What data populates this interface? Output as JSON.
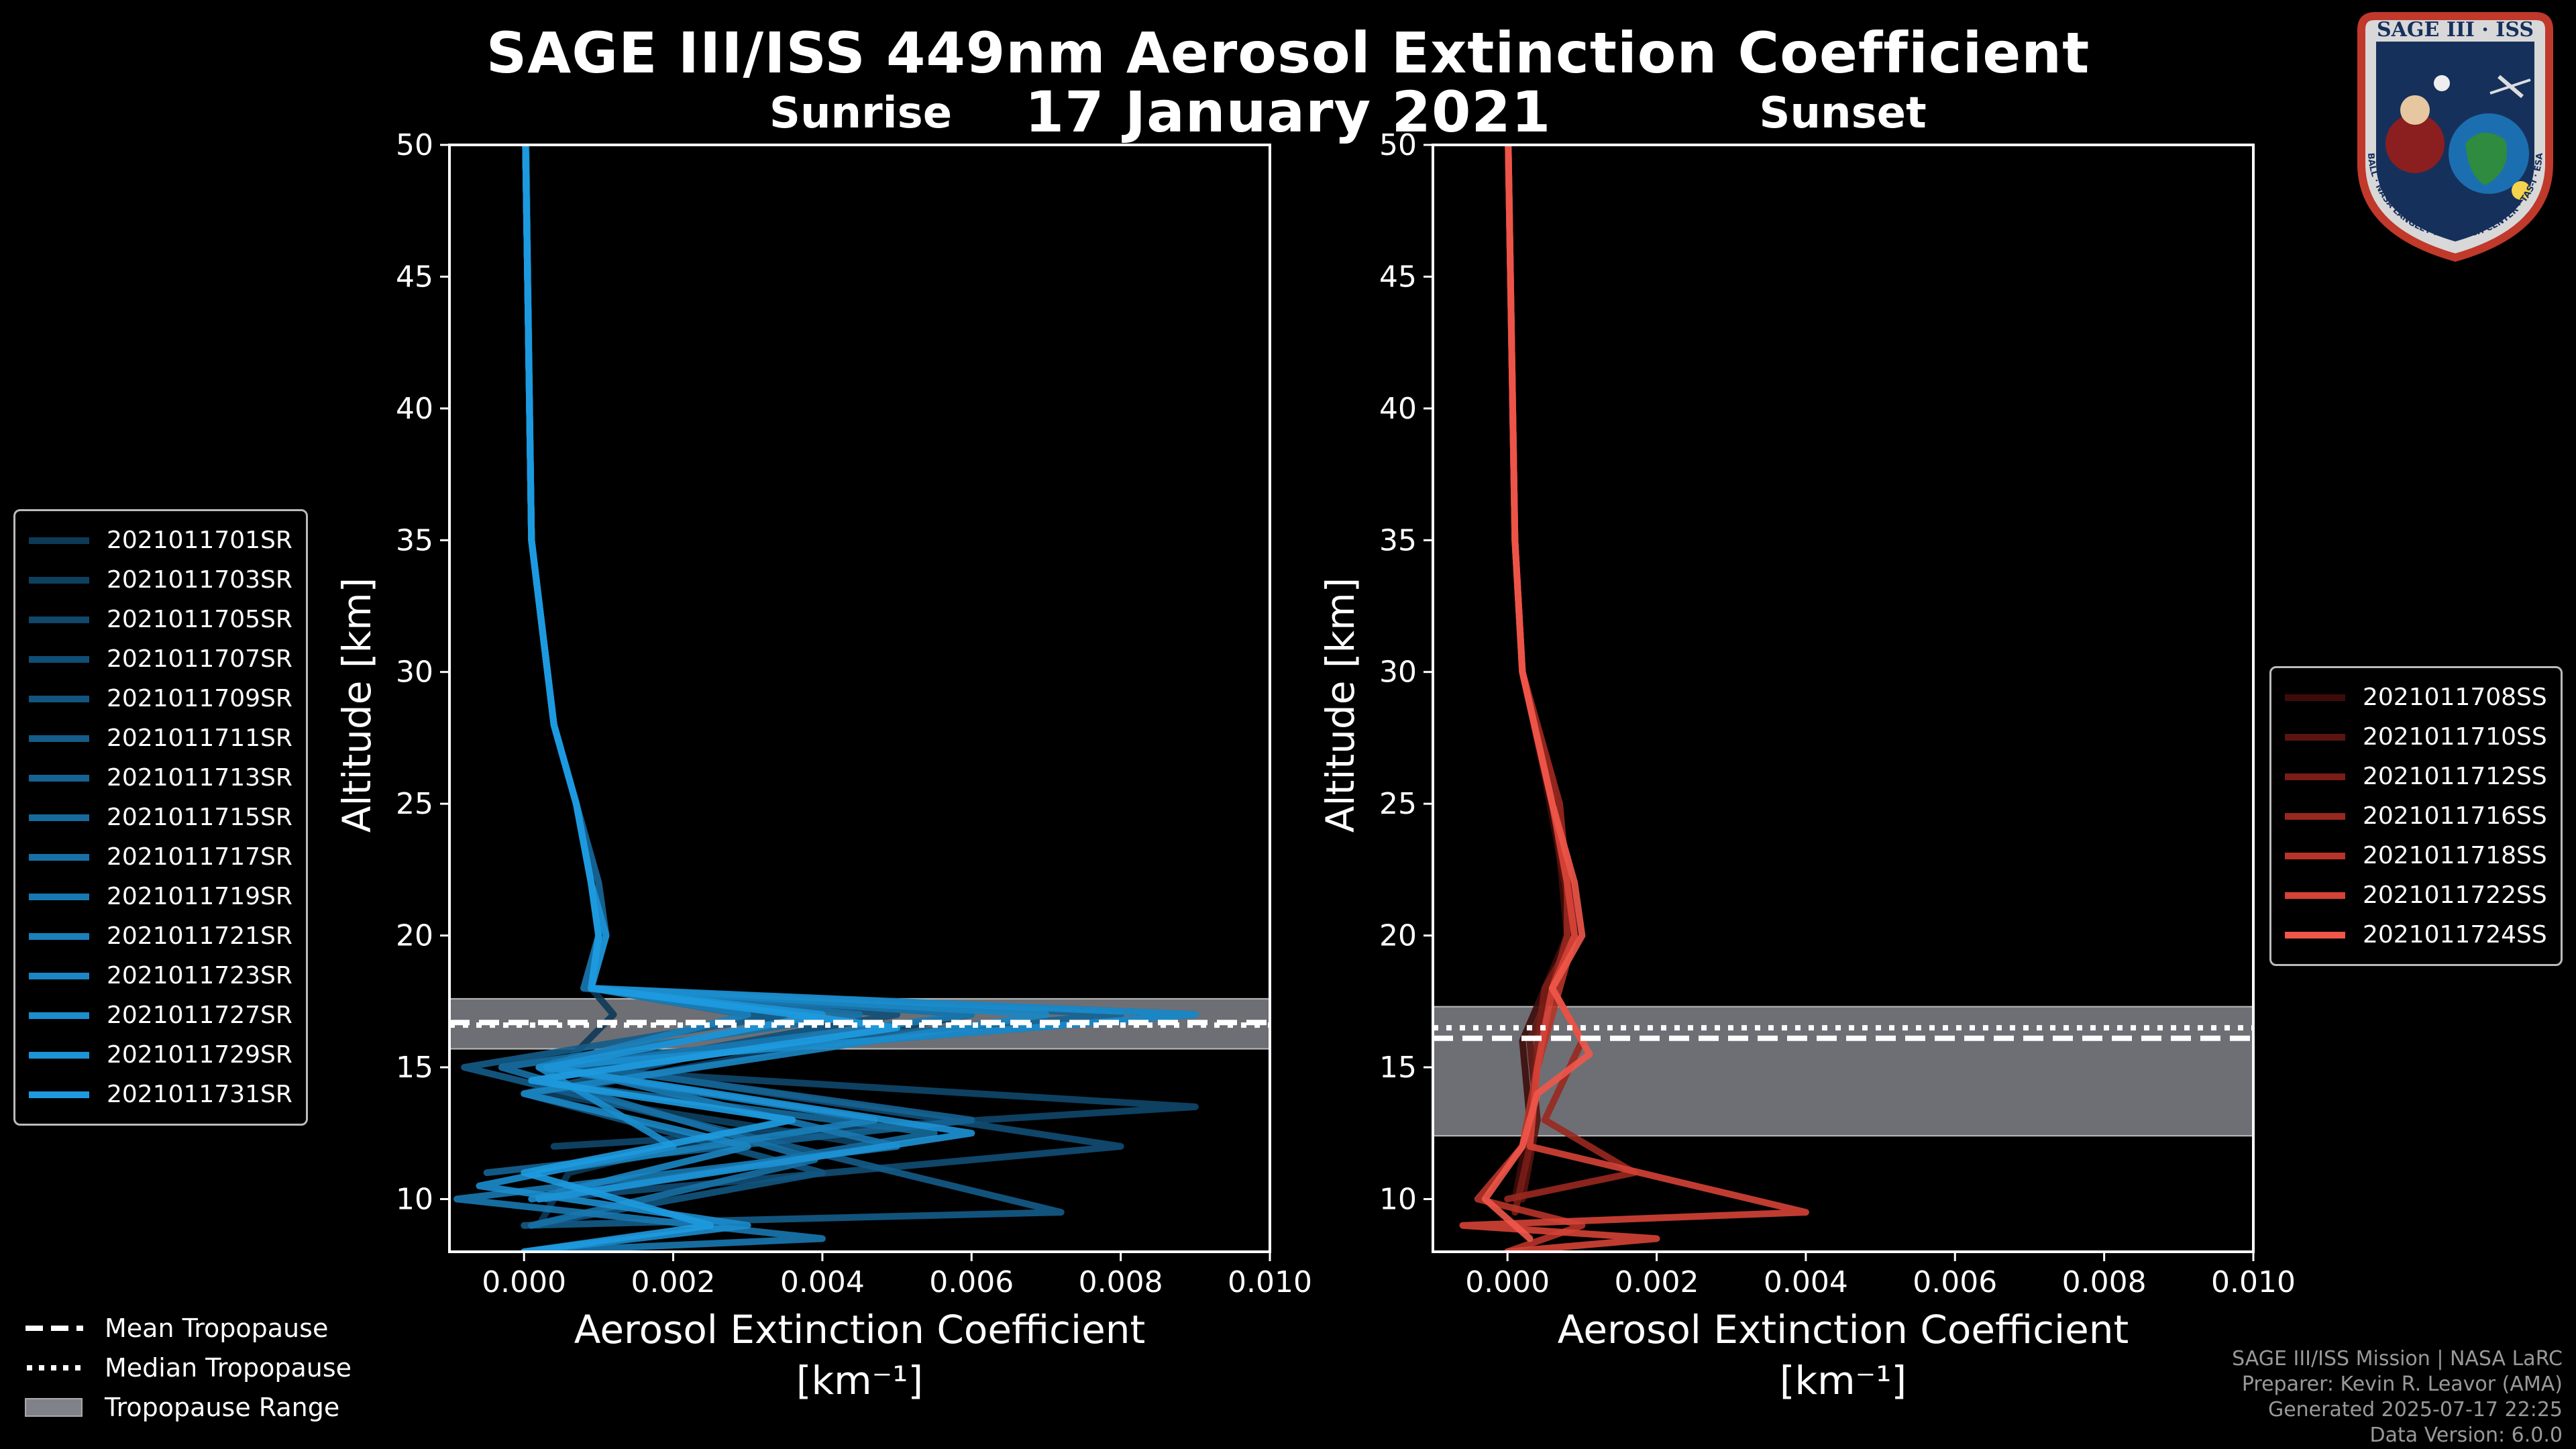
{
  "title_line1": "SAGE III/ISS 449nm Aerosol Extinction Coefficient",
  "title_line2": "17 January 2021",
  "logo": {
    "text": "SAGE III · ISS",
    "ring_text": "BALL · NASA LANGLEY RESEARCH CENTER · TAS-I · ESA"
  },
  "tropopause_legend": [
    {
      "label": "Mean Tropopause",
      "style": "dashed"
    },
    {
      "label": "Median Tropopause",
      "style": "dotted"
    },
    {
      "label": "Tropopause Range",
      "style": "patch"
    }
  ],
  "credits": [
    "SAGE III/ISS Mission | NASA LaRC",
    "Preparer: Kevin R. Leavor (AMA)",
    "Generated 2025-07-17 22:25",
    "Data Version: 6.0.0"
  ],
  "colors": {
    "sunrise": "#1f88c9",
    "sunset": "#e8574a",
    "range": "#80828a"
  },
  "chart_data": [
    {
      "type": "line",
      "title": "Sunrise",
      "xlabel": "Aerosol Extinction Coefficient",
      "xunit": "[km⁻¹]",
      "ylabel": "Altitude [km]",
      "xlim": [
        -0.001,
        0.01
      ],
      "ylim": [
        8,
        50
      ],
      "xticks": [
        0.0,
        0.002,
        0.004,
        0.006,
        0.008,
        0.01
      ],
      "xtick_labels": [
        "0.000",
        "0.002",
        "0.004",
        "0.006",
        "0.008",
        "0.010"
      ],
      "yticks": [
        10,
        15,
        20,
        25,
        30,
        35,
        40,
        45,
        50
      ],
      "tropopause": {
        "mean": 16.7,
        "median": 16.6,
        "range": [
          15.7,
          17.6
        ]
      },
      "legend_loc": "left",
      "series": [
        {
          "name": "2021011701SR",
          "color": "#0d3a57",
          "x": [
            2e-05,
            0.0001,
            0.0004,
            0.0007,
            0.0009,
            0.001,
            0.0009,
            0.0012,
            0.0005,
            0.0035,
            0.0006,
            0.0002
          ],
          "y": [
            50,
            35,
            28,
            25,
            22,
            20,
            18,
            17,
            15,
            13,
            11,
            9
          ]
        },
        {
          "name": "2021011703SR",
          "color": "#0e4060",
          "x": [
            3e-05,
            0.0001,
            0.0004,
            0.0007,
            0.0009,
            0.001,
            0.0009,
            0.006,
            0.0003,
            0.0048,
            0.0001
          ],
          "y": [
            50,
            35,
            28,
            25,
            22,
            20,
            18,
            17,
            14,
            12,
            10
          ]
        },
        {
          "name": "2021011705SR",
          "color": "#10476b",
          "x": [
            2e-05,
            0.0001,
            0.0004,
            0.0007,
            0.001,
            0.0011,
            0.0008,
            0.009,
            0.0002,
            0.009,
            0.0004
          ],
          "y": [
            50,
            35,
            28,
            25,
            22,
            20,
            18,
            17,
            15,
            13.5,
            12
          ]
        },
        {
          "name": "2021011707SR",
          "color": "#114e75",
          "x": [
            2e-05,
            0.0001,
            0.0004,
            0.0007,
            0.0009,
            0.001,
            0.0008,
            0.005,
            0.001,
            0.008,
            0.0002
          ],
          "y": [
            50,
            35,
            28,
            25,
            22,
            20,
            18,
            17,
            15,
            12,
            10
          ]
        },
        {
          "name": "2021011709SR",
          "color": "#12557f",
          "x": [
            2e-05,
            0.0001,
            0.0004,
            0.0007,
            0.0009,
            0.001,
            0.0009,
            0.004,
            0.0,
            0.004,
            0.0001
          ],
          "y": [
            50,
            35,
            28,
            25,
            22,
            20,
            18,
            16.5,
            14,
            11,
            9
          ]
        },
        {
          "name": "2021011711SR",
          "color": "#145c89",
          "x": [
            2e-05,
            0.0001,
            0.0004,
            0.0007,
            0.0009,
            0.001,
            0.0009,
            0.0035,
            -0.0008,
            0.0072,
            0.0
          ],
          "y": [
            50,
            35,
            28,
            25,
            22,
            20,
            18,
            17,
            15,
            9.5,
            9
          ]
        },
        {
          "name": "2021011713SR",
          "color": "#156393",
          "x": [
            2e-05,
            0.0001,
            0.0004,
            0.0007,
            0.001,
            0.0011,
            0.0009,
            0.008,
            0.0004,
            0.006,
            -0.0005
          ],
          "y": [
            50,
            35,
            28,
            25,
            22,
            20,
            18,
            17,
            15.2,
            13,
            11
          ]
        },
        {
          "name": "2021011715SR",
          "color": "#166a9c",
          "x": [
            2e-05,
            0.0001,
            0.0004,
            0.0007,
            0.0009,
            0.001,
            0.0009,
            0.005,
            0.0001,
            0.0055,
            0.0003
          ],
          "y": [
            50,
            35,
            28,
            25,
            22,
            20,
            18,
            16.5,
            14.5,
            12.5,
            10
          ]
        },
        {
          "name": "2021011717SR",
          "color": "#1771a6",
          "x": [
            2e-05,
            0.0001,
            0.0004,
            0.0007,
            0.0009,
            0.001,
            0.0008,
            0.0045,
            -0.0003,
            0.0039,
            0.0001
          ],
          "y": [
            50,
            35,
            28,
            25,
            22,
            20,
            18,
            17,
            15,
            11.5,
            9
          ]
        },
        {
          "name": "2021011719SR",
          "color": "#1878b0",
          "x": [
            2e-05,
            0.0001,
            0.0004,
            0.0007,
            0.0009,
            0.001,
            0.0009,
            0.006,
            0.0005,
            0.005,
            -0.0009,
            0.004,
            0.0
          ],
          "y": [
            50,
            35,
            28,
            25,
            22,
            20,
            18,
            17,
            15,
            12,
            10,
            8.5,
            8
          ]
        },
        {
          "name": "2021011721SR",
          "color": "#1a7fba",
          "x": [
            2e-05,
            0.0001,
            0.0004,
            0.0007,
            0.0009,
            0.001,
            0.0009,
            0.003,
            0.0002,
            0.0047,
            0.0002
          ],
          "y": [
            50,
            35,
            28,
            25,
            22,
            20,
            18,
            17,
            15,
            13,
            11
          ]
        },
        {
          "name": "2021011723SR",
          "color": "#1b86c3",
          "x": [
            2e-05,
            0.0001,
            0.0004,
            0.0007,
            0.0009,
            0.001,
            0.0009,
            0.007,
            0.0,
            0.003,
            0.0001
          ],
          "y": [
            50,
            35,
            28,
            25,
            22,
            20,
            18,
            17,
            14,
            12,
            10
          ]
        },
        {
          "name": "2021011727SR",
          "color": "#1c8dcd",
          "x": [
            2e-05,
            0.0001,
            0.0004,
            0.0007,
            0.0009,
            0.001,
            0.0009,
            0.009,
            0.0002,
            0.002,
            -0.0006,
            0.003,
            0.0
          ],
          "y": [
            50,
            35,
            28,
            25,
            22,
            20,
            18,
            17,
            15,
            12,
            10.5,
            9,
            8
          ]
        },
        {
          "name": "2021011729SR",
          "color": "#1d94d6",
          "x": [
            2e-05,
            0.0001,
            0.0004,
            0.0007,
            0.0009,
            0.0011,
            0.0009,
            0.004,
            0.0003,
            0.006,
            0.0002
          ],
          "y": [
            50,
            35,
            28,
            25,
            22,
            20,
            18,
            17,
            15,
            12.5,
            10
          ]
        },
        {
          "name": "2021011731SR",
          "color": "#1e9be0",
          "x": [
            2e-05,
            0.0001,
            0.0004,
            0.0007,
            0.0009,
            0.001,
            0.0009,
            0.005,
            0.0001,
            0.0036,
            0.0,
            0.0025,
            0.0
          ],
          "y": [
            50,
            35,
            28,
            25,
            22,
            20,
            18,
            16.5,
            14.5,
            13,
            11,
            9,
            8
          ]
        }
      ]
    },
    {
      "type": "line",
      "title": "Sunset",
      "xlabel": "Aerosol Extinction Coefficient",
      "xunit": "[km⁻¹]",
      "ylabel": "Altitude [km]",
      "xlim": [
        -0.001,
        0.01
      ],
      "ylim": [
        8,
        50
      ],
      "xticks": [
        0.0,
        0.002,
        0.004,
        0.006,
        0.008,
        0.01
      ],
      "xtick_labels": [
        "0.000",
        "0.002",
        "0.004",
        "0.006",
        "0.008",
        "0.010"
      ],
      "yticks": [
        10,
        15,
        20,
        25,
        30,
        35,
        40,
        45,
        50
      ],
      "tropopause": {
        "mean": 16.1,
        "median": 16.5,
        "range": [
          12.4,
          17.3
        ]
      },
      "legend_loc": "right",
      "series": [
        {
          "name": "2021011708SS",
          "color": "#3d0c0a",
          "x": [
            1e-05,
            0.0001,
            0.0002,
            0.0005,
            0.0007,
            0.0008,
            0.0005,
            0.0002,
            0.0003,
            0.0001
          ],
          "y": [
            50,
            35,
            30,
            26,
            23,
            20,
            18,
            16,
            13,
            10
          ]
        },
        {
          "name": "2021011710SS",
          "color": "#5b1410",
          "x": [
            1e-05,
            0.0001,
            0.0002,
            0.0006,
            0.0007,
            0.0009,
            0.0006,
            0.0003,
            0.0004,
            0.0002
          ],
          "y": [
            50,
            35,
            30,
            26,
            23,
            20,
            18,
            16,
            13,
            10
          ]
        },
        {
          "name": "2021011712SS",
          "color": "#7a1d17",
          "x": [
            1e-05,
            0.0001,
            0.0002,
            0.0006,
            0.0008,
            0.0009,
            0.0005,
            0.0004,
            0.0003,
            0.0001
          ],
          "y": [
            50,
            35,
            30,
            25,
            23,
            20,
            18,
            16,
            12,
            9.5
          ]
        },
        {
          "name": "2021011716SS",
          "color": "#99281f",
          "x": [
            1e-05,
            0.0001,
            0.0002,
            0.0007,
            0.0008,
            0.0008,
            0.0006,
            0.001,
            0.0005,
            0.0017,
            0.0
          ],
          "y": [
            50,
            35,
            30,
            25,
            22,
            20,
            18,
            16,
            13,
            11,
            10
          ]
        },
        {
          "name": "2021011718SS",
          "color": "#b73429",
          "x": [
            1e-05,
            0.0001,
            0.0002,
            0.0006,
            0.0008,
            0.0009,
            0.0007,
            0.0004,
            0.0002,
            -0.0004,
            0.001,
            0.0
          ],
          "y": [
            50,
            35,
            30,
            25,
            22,
            20,
            18,
            15,
            12,
            10,
            9,
            8
          ]
        },
        {
          "name": "2021011722SS",
          "color": "#d54236",
          "x": [
            1e-05,
            0.0001,
            0.0002,
            0.0006,
            0.0008,
            0.0009,
            0.0006,
            0.0004,
            0.0003,
            0.004,
            -0.0006,
            0.002,
            0.0
          ],
          "y": [
            50,
            35,
            30,
            25,
            22,
            20,
            18,
            15,
            12,
            9.5,
            9,
            8.5,
            8
          ]
        },
        {
          "name": "2021011724SS",
          "color": "#f0564a",
          "x": [
            1e-05,
            0.0001,
            0.0002,
            0.0006,
            0.0009,
            0.001,
            0.0006,
            0.0011,
            0.0004,
            0.0002,
            -0.0003,
            0.0003
          ],
          "y": [
            50,
            35,
            30,
            25,
            22,
            20,
            18,
            15.5,
            14,
            12,
            10,
            8.5
          ]
        }
      ]
    }
  ]
}
